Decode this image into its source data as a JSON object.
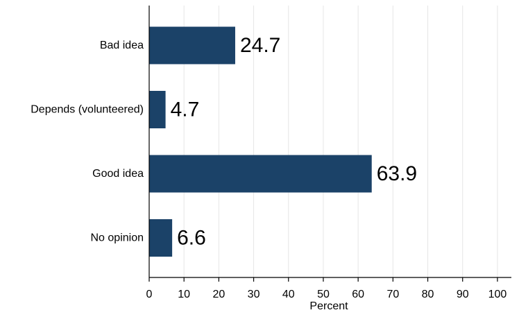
{
  "chart_data": {
    "type": "bar",
    "orientation": "horizontal",
    "categories": [
      "Bad idea",
      "Depends (volunteered)",
      "Good idea",
      "No opinion"
    ],
    "values": [
      24.7,
      4.7,
      63.9,
      6.6
    ],
    "data_labels": [
      "24.7",
      "4.7",
      "63.9",
      "6.6"
    ],
    "title": "",
    "xlabel": "Percent",
    "ylabel": "",
    "xlim": [
      0,
      104
    ],
    "x_ticks": [
      0,
      10,
      20,
      30,
      40,
      50,
      60,
      70,
      80,
      90,
      100
    ],
    "x_tick_labels": [
      "0",
      "10",
      "20",
      "30",
      "40",
      "50",
      "60",
      "70",
      "80",
      "90",
      "100"
    ],
    "grid": "vertical",
    "legend": "none",
    "colors": {
      "bar": "#1b4268",
      "grid": "#e6e6e6",
      "axis": "#000000",
      "background": "#ffffff"
    }
  }
}
